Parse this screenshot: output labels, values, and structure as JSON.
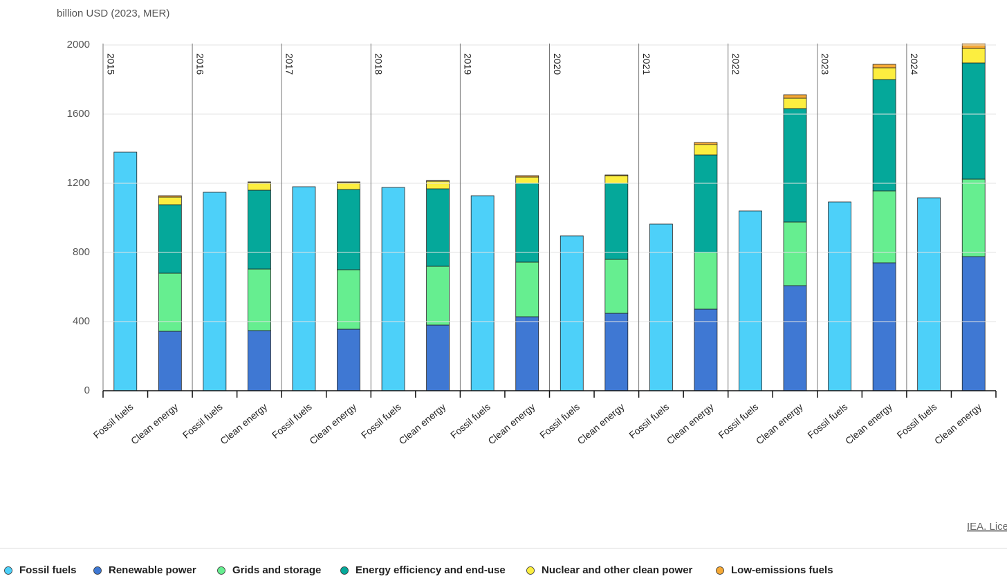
{
  "chart_data": {
    "type": "stacked-bar",
    "y_axis_label": "billion USD (2023, MER)",
    "source": "IEA. Lice",
    "groups": [
      "2015",
      "2016",
      "2017",
      "2018",
      "2019",
      "2020",
      "2021",
      "2022",
      "2023",
      "2024"
    ],
    "categories": [
      "Fossil fuels",
      "Clean energy",
      "Fossil fuels",
      "Clean energy",
      "Fossil fuels",
      "Clean energy",
      "Fossil fuels",
      "Clean energy",
      "Fossil fuels",
      "Clean energy",
      "Fossil fuels",
      "Clean energy",
      "Fossil fuels",
      "Clean energy",
      "Fossil fuels",
      "Clean energy",
      "Fossil fuels",
      "Clean energy",
      "Fossil fuels",
      "Clean energy"
    ],
    "series": [
      {
        "name": "Fossil fuels",
        "color": "#4dd0f9",
        "values": [
          1380,
          null,
          1148,
          null,
          1180,
          null,
          1176,
          null,
          1128,
          null,
          896,
          null,
          964,
          null,
          1040,
          null,
          1092,
          null,
          1116,
          null
        ]
      },
      {
        "name": "Renewable power",
        "color": "#3f78d3",
        "values": [
          null,
          344,
          null,
          348,
          null,
          356,
          null,
          380,
          null,
          428,
          null,
          448,
          null,
          472,
          null,
          608,
          null,
          740,
          null,
          776
        ]
      },
      {
        "name": "Grids and storage",
        "color": "#66ee90",
        "values": [
          null,
          336,
          null,
          356,
          null,
          344,
          null,
          340,
          null,
          316,
          null,
          312,
          null,
          328,
          null,
          368,
          null,
          416,
          null,
          448
        ]
      },
      {
        "name": "Energy efficiency and end-use",
        "color": "#05a89a",
        "values": [
          null,
          396,
          null,
          456,
          null,
          464,
          null,
          448,
          null,
          456,
          null,
          440,
          null,
          564,
          null,
          656,
          null,
          644,
          null,
          672
        ]
      },
      {
        "name": "Nuclear and other clean power",
        "color": "#fcee40",
        "values": [
          null,
          44,
          null,
          44,
          null,
          40,
          null,
          44,
          null,
          36,
          null,
          44,
          null,
          60,
          null,
          60,
          null,
          68,
          null,
          84
        ]
      },
      {
        "name": "Low-emissions fuels",
        "color": "#f6a935",
        "values": [
          null,
          8,
          null,
          4,
          null,
          4,
          null,
          4,
          null,
          8,
          null,
          4,
          null,
          12,
          null,
          20,
          null,
          20,
          null,
          28
        ]
      }
    ],
    "ylim": [
      0,
      2000
    ],
    "yticks": [
      0,
      400,
      800,
      1200,
      1600,
      2000
    ],
    "grid": true
  }
}
